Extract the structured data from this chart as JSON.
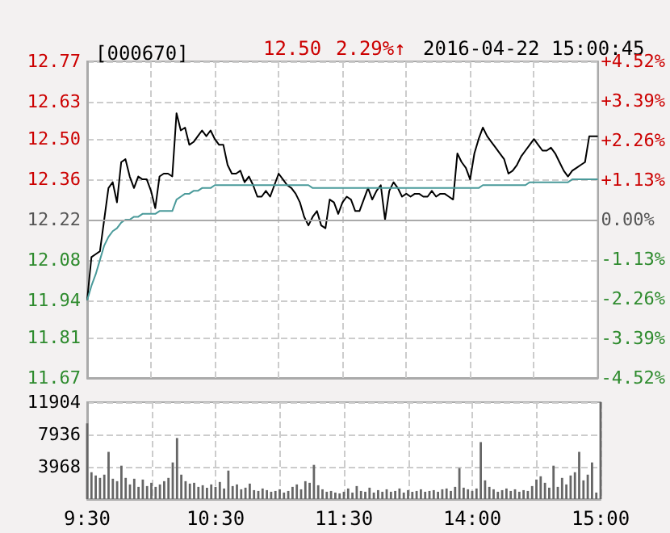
{
  "chart_data": [
    {
      "type": "line",
      "title": "[000670]",
      "annotations": [
        "12.50",
        "2.29%↑",
        "2016-04-22 15:00:45"
      ],
      "categories": [
        null,
        null,
        null,
        null,
        null,
        null,
        null,
        null,
        null,
        null,
        null,
        null,
        null,
        null,
        null,
        null,
        null,
        null,
        null,
        null,
        null,
        null,
        null,
        null,
        null,
        null,
        null,
        null,
        null,
        null,
        null,
        null,
        null,
        null,
        null,
        null,
        null,
        null,
        null,
        null,
        null,
        null,
        null,
        null,
        null,
        null,
        null,
        null,
        null,
        null,
        null,
        null,
        null,
        null,
        null,
        null,
        null,
        null,
        null,
        null,
        null,
        null,
        null,
        null,
        null,
        null,
        null,
        null,
        null,
        null,
        null,
        null,
        null,
        null,
        null,
        null,
        null,
        null,
        null,
        null,
        null,
        null,
        null,
        null,
        null,
        null,
        null,
        null,
        null,
        null,
        null,
        null,
        null,
        null,
        null,
        null,
        null,
        null,
        null,
        null,
        null,
        null,
        null,
        null,
        null,
        null,
        null,
        null,
        null,
        null,
        null,
        null,
        null,
        null,
        null,
        null,
        null,
        null,
        null,
        null,
        null
      ],
      "series": [
        {
          "color": "#000000",
          "values": [
            11.94,
            12.09,
            12.1,
            12.11,
            12.22,
            12.33,
            12.35,
            12.28,
            12.42,
            12.43,
            12.37,
            12.33,
            12.37,
            12.36,
            12.36,
            12.32,
            12.26,
            12.37,
            12.38,
            12.38,
            12.37,
            12.59,
            12.53,
            12.54,
            12.48,
            12.49,
            12.51,
            12.53,
            12.51,
            12.53,
            12.5,
            12.48,
            12.48,
            12.41,
            12.38,
            12.38,
            12.39,
            12.35,
            12.37,
            12.34,
            12.3,
            12.3,
            12.32,
            12.3,
            12.34,
            12.38,
            12.36,
            12.34,
            12.33,
            12.31,
            12.28,
            12.23,
            12.2,
            12.23,
            12.25,
            12.2,
            12.19,
            12.29,
            12.28,
            12.24,
            12.28,
            12.3,
            12.29,
            12.25,
            12.25,
            12.29,
            12.33,
            12.29,
            12.32,
            12.34,
            12.22,
            12.32,
            12.35,
            12.33,
            12.3,
            12.31,
            12.3,
            12.31,
            12.31,
            12.3,
            12.3,
            12.32,
            12.3,
            12.31,
            12.31,
            12.3,
            12.29,
            12.45,
            12.42,
            12.4,
            12.36,
            12.45,
            12.5,
            12.54,
            12.51,
            12.49,
            12.47,
            12.45,
            12.43,
            12.38,
            12.39,
            12.41,
            12.44,
            12.46,
            12.48,
            12.5,
            12.48,
            12.46,
            12.46,
            12.47,
            12.45,
            12.42,
            12.39,
            12.37,
            12.39,
            12.4,
            12.41,
            12.42,
            12.51,
            12.51,
            12.51
          ]
        },
        {
          "color": "#4a9a9a",
          "values": [
            11.94,
            11.99,
            12.03,
            12.08,
            12.13,
            12.16,
            12.18,
            12.19,
            12.21,
            12.22,
            12.22,
            12.23,
            12.23,
            12.24,
            12.24,
            12.24,
            12.24,
            12.25,
            12.25,
            12.25,
            12.25,
            12.29,
            12.3,
            12.31,
            12.31,
            12.32,
            12.32,
            12.33,
            12.33,
            12.33,
            12.34,
            12.34,
            12.34,
            12.34,
            12.34,
            12.34,
            12.34,
            12.34,
            12.34,
            12.34,
            12.34,
            12.34,
            12.34,
            12.34,
            12.34,
            12.34,
            12.34,
            12.34,
            12.34,
            12.34,
            12.34,
            12.34,
            12.34,
            12.33,
            12.33,
            12.33,
            12.33,
            12.33,
            12.33,
            12.33,
            12.33,
            12.33,
            12.33,
            12.33,
            12.33,
            12.33,
            12.33,
            12.33,
            12.33,
            12.33,
            12.33,
            12.33,
            12.33,
            12.33,
            12.33,
            12.33,
            12.33,
            12.33,
            12.33,
            12.33,
            12.33,
            12.33,
            12.33,
            12.33,
            12.33,
            12.33,
            12.33,
            12.33,
            12.33,
            12.33,
            12.33,
            12.33,
            12.33,
            12.34,
            12.34,
            12.34,
            12.34,
            12.34,
            12.34,
            12.34,
            12.34,
            12.34,
            12.34,
            12.34,
            12.35,
            12.35,
            12.35,
            12.35,
            12.35,
            12.35,
            12.35,
            12.35,
            12.35,
            12.35,
            12.36,
            12.36,
            12.36,
            12.36,
            12.36,
            12.36,
            12.36
          ]
        }
      ],
      "ylim": [
        11.67,
        12.77
      ],
      "yticks": [
        11.67,
        11.81,
        11.94,
        12.08,
        12.22,
        12.36,
        {
          "value": 12.5,
          "label": "12.50"
        },
        12.63,
        12.77
      ],
      "y2lim": [
        -4.52,
        4.52
      ],
      "y2ticks": [
        {
          "value": -4.52,
          "label": "-4.52%"
        },
        {
          "value": -3.39,
          "label": "-3.39%"
        },
        {
          "value": -2.26,
          "label": "-2.26%"
        },
        {
          "value": -1.13,
          "label": "-1.13%"
        },
        {
          "value": 0,
          "label": "0.00%"
        },
        {
          "value": 1.13,
          "label": "+1.13%"
        },
        {
          "value": 2.26,
          "label": "+2.26%"
        },
        {
          "value": 3.39,
          "label": "+3.39%"
        },
        {
          "value": 4.52,
          "label": "+4.52%"
        }
      ],
      "ref_lines": [
        {
          "axis": "y",
          "value": 12.22,
          "color": "#aaaaaa",
          "line_style": "solid"
        }
      ],
      "grid": true,
      "marker": "none",
      "line_style": "solid"
    },
    {
      "type": "bar",
      "categories": [
        "9:30",
        null,
        null,
        null,
        null,
        null,
        null,
        null,
        null,
        null,
        null,
        null,
        null,
        null,
        null,
        null,
        null,
        null,
        null,
        null,
        null,
        null,
        null,
        null,
        null,
        null,
        null,
        null,
        null,
        null,
        "10:30",
        null,
        null,
        null,
        null,
        null,
        null,
        null,
        null,
        null,
        null,
        null,
        null,
        null,
        null,
        null,
        null,
        null,
        null,
        null,
        null,
        null,
        null,
        null,
        null,
        null,
        null,
        null,
        null,
        null,
        "11:30",
        null,
        null,
        null,
        null,
        null,
        null,
        null,
        null,
        null,
        null,
        null,
        null,
        null,
        null,
        null,
        null,
        null,
        null,
        null,
        null,
        null,
        null,
        null,
        null,
        null,
        null,
        null,
        null,
        null,
        "14:00",
        null,
        null,
        null,
        null,
        null,
        null,
        null,
        null,
        null,
        null,
        null,
        null,
        null,
        null,
        null,
        null,
        null,
        null,
        null,
        null,
        null,
        null,
        null,
        null,
        null,
        null,
        null,
        null,
        null,
        "15:00"
      ],
      "series": [
        {
          "color": "#666666",
          "values": [
            9300,
            3300,
            2900,
            2600,
            3000,
            5800,
            2500,
            2200,
            4100,
            2600,
            1800,
            2500,
            1500,
            2400,
            1600,
            2000,
            1500,
            1800,
            2200,
            2600,
            4500,
            7500,
            3000,
            2200,
            1900,
            2000,
            1500,
            1700,
            1400,
            1800,
            1500,
            2100,
            1300,
            3500,
            1600,
            1800,
            1200,
            1400,
            1900,
            1100,
            1000,
            1300,
            1100,
            900,
            1000,
            1200,
            800,
            1000,
            1500,
            1800,
            1200,
            2200,
            2000,
            4200,
            1700,
            1200,
            900,
            1000,
            800,
            700,
            900,
            1300,
            800,
            1600,
            1000,
            900,
            1400,
            800,
            1100,
            900,
            1200,
            900,
            1000,
            1300,
            800,
            1100,
            900,
            1000,
            1200,
            900,
            1000,
            1100,
            900,
            1200,
            1300,
            1000,
            1500,
            3800,
            1400,
            1200,
            1000,
            1300,
            7000,
            2300,
            1500,
            1200,
            900,
            1100,
            1300,
            1000,
            1200,
            900,
            1100,
            1000,
            1600,
            2400,
            2800,
            2000,
            1400,
            4100,
            1500,
            2600,
            1800,
            2900,
            3300,
            5800,
            2300,
            3000,
            4500,
            800,
            11904
          ]
        }
      ],
      "ylim": [
        0,
        11904
      ],
      "yticks": [
        3968,
        7936,
        11904
      ],
      "grid": true
    }
  ]
}
